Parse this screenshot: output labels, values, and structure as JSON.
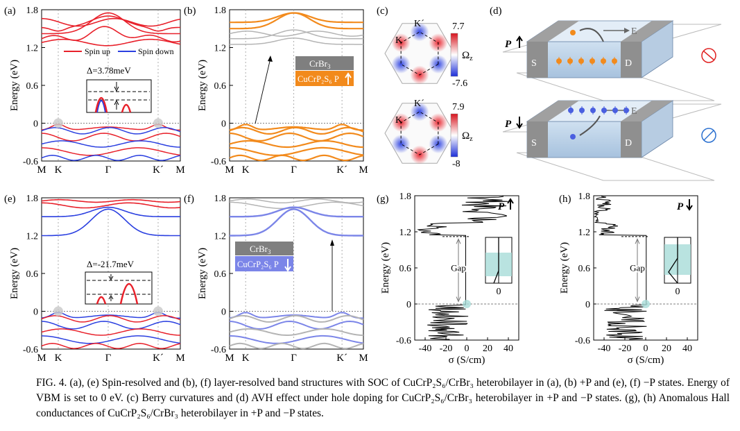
{
  "panel_labels": [
    "(a)",
    "(b)",
    "(c)",
    "(d)",
    "(e)",
    "(f)",
    "(g)",
    "(h)"
  ],
  "band_y_ticks": [
    "1.8",
    "1.2",
    "0.6",
    "0",
    "-0.6"
  ],
  "band_y_label": "Energy (eV)",
  "band_k_labels": [
    "M",
    "K",
    "Γ",
    "K´",
    "M"
  ],
  "legend_spin_up": "Spin up",
  "legend_spin_down": "Spin down",
  "delta_a": "Δ=3.78meV",
  "delta_e": "Δ=-21.7meV",
  "layer_crbr3": "CrBr",
  "layer_crbr3_sub": "3",
  "layer_cucrp2s6_b": "CuCrP₂S₆ P",
  "layer_cucrp2s6_f": "CuCrP₂S₆ P",
  "berry_top_max": "7.7",
  "berry_top_min": "-7.6",
  "berry_bot_max": "7.9",
  "berry_bot_min": "-8",
  "berry_symbol": "Ω",
  "berry_sub": "z",
  "berry_k": "K",
  "berry_kprime": "K´",
  "device_p": "P",
  "device_s": "S",
  "device_d": "D",
  "device_e": "E",
  "hall_y_ticks": [
    "1.8",
    "1.2",
    "0.6",
    "0",
    "-0.6"
  ],
  "hall_x_ticks": [
    "-40",
    "-20",
    "0",
    "20",
    "40"
  ],
  "hall_x_label": "σ (S/cm)",
  "hall_gap": "Gap",
  "hall_zero": "0",
  "caption": "FIG. 4.  (a), (e) Spin-resolved and (b), (f) layer-resolved band structures with SOC of CuCrP₂S₆/CrBr₃ heterobilayer in (a), (b) +P and (e), (f) −P states. Energy of VBM is set to 0 eV. (c) Berry curvatures and (d) AVH effect under hole doping for CuCrP₂S₆/CrBr₃ heterobilayer in +P and −P states. (g), (h) Anomalous Hall conductances of CuCrP₂S₆/CrBr₃ heterobilayer in +P and −P states.",
  "colors": {
    "spin_up": "#e8202a",
    "spin_down": "#2a3fe0",
    "orange": "#f28a1c",
    "violet": "#7b85e8",
    "gray": "#b4b4b4",
    "teal": "#a8dcd8"
  }
}
